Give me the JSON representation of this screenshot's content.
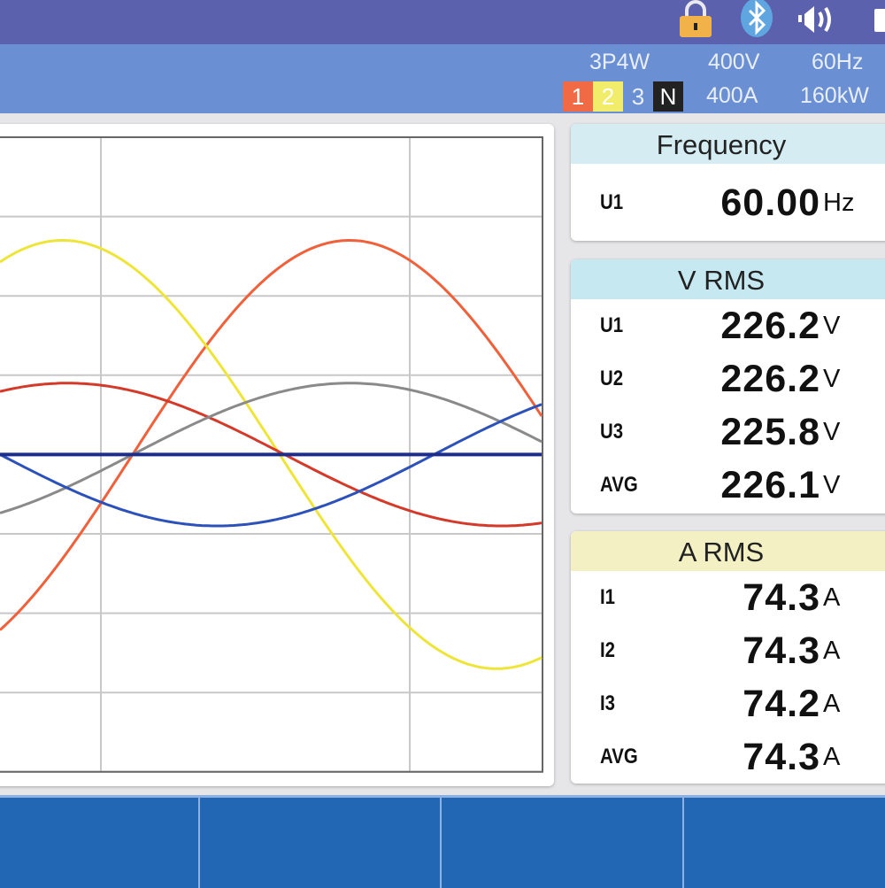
{
  "status_bar": {
    "icons": [
      "lock-icon",
      "bluetooth-icon",
      "speaker-volume-icon",
      "battery-icon"
    ],
    "lock_color": "#f2b24a",
    "bluetooth_color": "#5fa6e0"
  },
  "info_bar": {
    "wiring": "3P4W",
    "voltage_range": "400V",
    "frequency": "60Hz",
    "current_range": "400A",
    "power_range": "160kW",
    "channels": [
      {
        "label": "1",
        "color": "#ef6a45",
        "text_color": "#ffffff"
      },
      {
        "label": "2",
        "color": "#f1ec6a",
        "text_color": "#ffffff"
      },
      {
        "label": "3",
        "color": "",
        "text_color": "#e8eefa"
      },
      {
        "label": "N",
        "color": "#222222",
        "text_color": "#ffffff"
      }
    ]
  },
  "chart_data": {
    "type": "line",
    "title": "",
    "xlabel": "",
    "ylabel": "",
    "grid": true,
    "x_range_deg": [
      0,
      225
    ],
    "y_range_div": [
      -4,
      4
    ],
    "series": [
      {
        "kind": "sine",
        "amplitude_div": 2.7,
        "phase_deg": -55,
        "color": "#f0603a"
      },
      {
        "kind": "sine",
        "amplitude_div": 2.7,
        "phase_deg": 64,
        "color": "#eee53a"
      },
      {
        "kind": "sine",
        "amplitude_div": 0.9,
        "phase_deg": 62,
        "color": "#d43a2a"
      },
      {
        "kind": "sine",
        "amplitude_div": 0.9,
        "phase_deg": -55,
        "color": "#8a8a8a"
      },
      {
        "kind": "sine",
        "amplitude_div": 0.9,
        "phase_deg": 180,
        "color": "#2c52ba"
      },
      {
        "kind": "flat",
        "amplitude_div": 0,
        "phase_deg": 0,
        "color": "#1c2d8c"
      }
    ]
  },
  "frequency": {
    "title": "Frequency",
    "header_color": "#d4ecf2",
    "rows": [
      {
        "label": "U1",
        "value": "60.00",
        "unit": "Hz"
      }
    ]
  },
  "vrms": {
    "title": "V RMS",
    "header_color": "#c6e8f0",
    "rows": [
      {
        "label": "U1",
        "value": "226.2",
        "unit": "V"
      },
      {
        "label": "U2",
        "value": "226.2",
        "unit": "V"
      },
      {
        "label": "U3",
        "value": "225.8",
        "unit": "V"
      },
      {
        "label": "AVG",
        "value": "226.1",
        "unit": "V"
      }
    ]
  },
  "arms": {
    "title": "A RMS",
    "header_color": "#f3f1c4",
    "rows": [
      {
        "label": "I1",
        "value": "74.3",
        "unit": "A"
      },
      {
        "label": "I2",
        "value": "74.3",
        "unit": "A"
      },
      {
        "label": "I3",
        "value": "74.2",
        "unit": "A"
      },
      {
        "label": "AVG",
        "value": "74.3",
        "unit": "A"
      }
    ]
  }
}
